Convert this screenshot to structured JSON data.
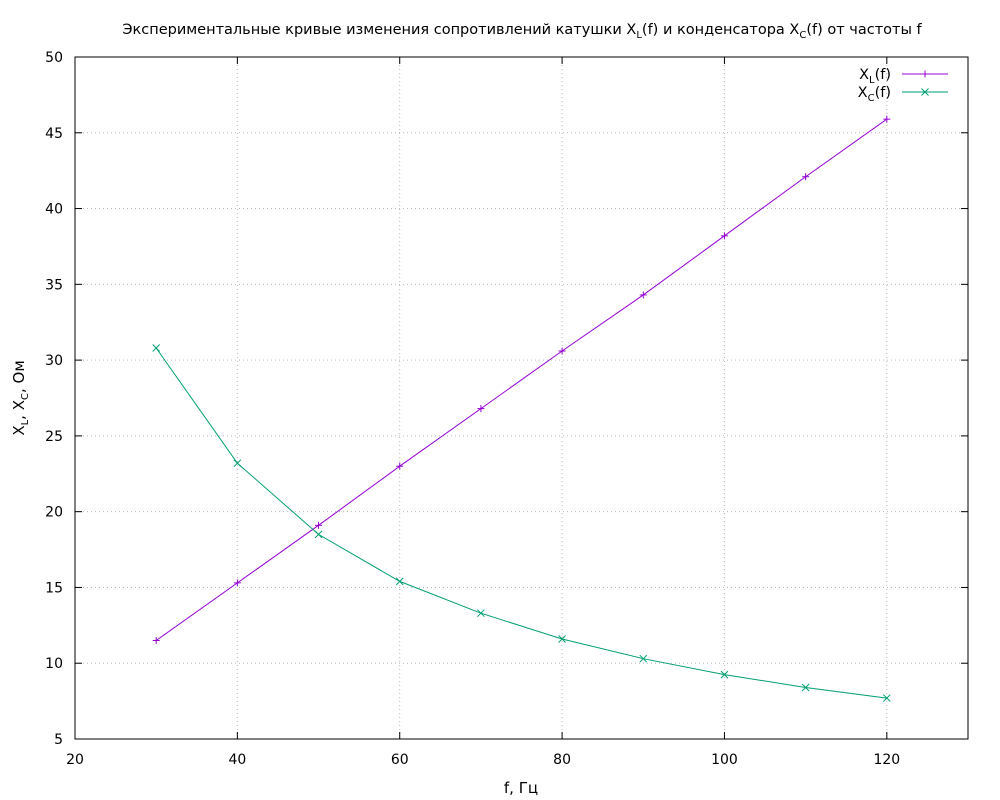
{
  "chart_data": {
    "type": "line",
    "title": {
      "prefix": "Экспериментальные кривые изменения сопротивлений катушки X",
      "sub1": "L",
      "middle": "(f) и конденсатора X",
      "sub2": "C",
      "suffix": "(f) от частоты f"
    },
    "xlabel": "f, Гц",
    "ylabel": {
      "part1": "X",
      "sub1": "L",
      "part2": ", X",
      "sub2": "C",
      "part3": ", Ом"
    },
    "xlim": [
      20,
      130
    ],
    "ylim": [
      5,
      50
    ],
    "xticks": [
      20,
      40,
      60,
      80,
      100,
      120
    ],
    "yticks": [
      5,
      10,
      15,
      20,
      25,
      30,
      35,
      40,
      45,
      50
    ],
    "grid": true,
    "legend_position": "top-right",
    "x": [
      30,
      40,
      50,
      60,
      70,
      80,
      90,
      100,
      110,
      120
    ],
    "series": [
      {
        "name_main": "X",
        "name_sub": "L",
        "name_suffix": "(f)",
        "color": "#9400d3",
        "marker": "plus",
        "values": [
          11.5,
          15.3,
          19.1,
          23.0,
          26.8,
          30.6,
          34.3,
          38.2,
          42.1,
          45.9
        ]
      },
      {
        "name_main": "X",
        "name_sub": "C",
        "name_suffix": "(f)",
        "color": "#009e73",
        "marker": "cross",
        "values": [
          30.8,
          23.2,
          18.5,
          15.4,
          13.3,
          11.6,
          10.3,
          9.25,
          8.4,
          7.7
        ]
      }
    ]
  }
}
